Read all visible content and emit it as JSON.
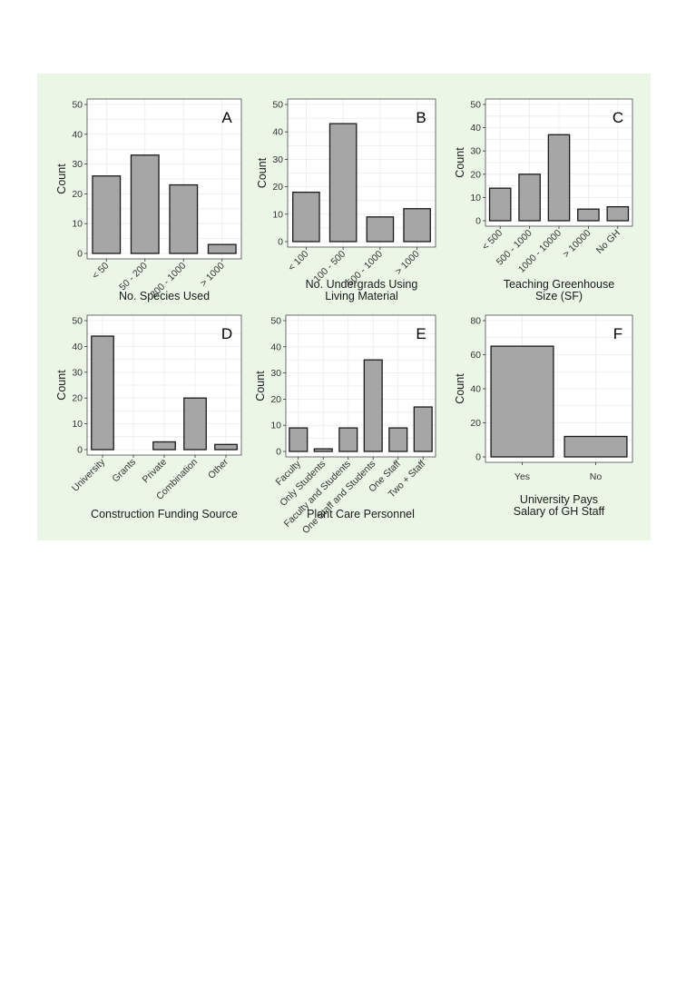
{
  "chart_data": [
    {
      "id": "A",
      "type": "bar",
      "panel_label": "A",
      "categories": [
        "< 50",
        "50 - 200",
        "200 - 1000",
        "> 1000"
      ],
      "values": [
        26,
        33,
        23,
        3
      ],
      "xlabel": [
        "No. Species Used"
      ],
      "ylabel": "Count",
      "ylim": [
        0,
        50
      ],
      "yticks": [
        0,
        10,
        20,
        30,
        40,
        50
      ],
      "grid": true
    },
    {
      "id": "B",
      "type": "bar",
      "panel_label": "B",
      "categories": [
        "< 100",
        "100 - 500",
        "500 - 1000",
        "> 1000"
      ],
      "values": [
        18,
        43,
        9,
        12
      ],
      "xlabel": [
        "No. Undergrads Using",
        "Living Material"
      ],
      "ylabel": "Count",
      "ylim": [
        0,
        50
      ],
      "yticks": [
        0,
        10,
        20,
        30,
        40,
        50
      ],
      "grid": true
    },
    {
      "id": "C",
      "type": "bar",
      "panel_label": "C",
      "categories": [
        "< 500",
        "500 - 1000",
        "1000 - 10000",
        "> 10000",
        "No GH"
      ],
      "values": [
        14,
        20,
        37,
        5,
        6
      ],
      "xlabel": [
        "Teaching Greenhouse",
        "Size (SF)"
      ],
      "ylabel": "Count",
      "ylim": [
        0,
        50
      ],
      "yticks": [
        0,
        10,
        20,
        30,
        40,
        50
      ],
      "grid": true
    },
    {
      "id": "D",
      "type": "bar",
      "panel_label": "D",
      "categories": [
        "University",
        "Grants",
        "Private",
        "Combination",
        "Other"
      ],
      "values": [
        44,
        0,
        3,
        20,
        2
      ],
      "xlabel": [
        "Construction Funding Source"
      ],
      "ylabel": "Count",
      "ylim": [
        0,
        50
      ],
      "yticks": [
        0,
        10,
        20,
        30,
        40,
        50
      ],
      "grid": true
    },
    {
      "id": "E",
      "type": "bar",
      "panel_label": "E",
      "categories": [
        "Faculty",
        "Only Students",
        "Faculty and Students",
        "One Staff and Students",
        "One Staff",
        "Two + Staff"
      ],
      "values": [
        9,
        1,
        9,
        35,
        9,
        17
      ],
      "xlabel": [
        "Plant Care Personnel"
      ],
      "ylabel": "Count",
      "ylim": [
        0,
        50
      ],
      "yticks": [
        0,
        10,
        20,
        30,
        40,
        50
      ],
      "grid": true
    },
    {
      "id": "F",
      "type": "bar",
      "panel_label": "F",
      "categories": [
        "Yes",
        "No"
      ],
      "values": [
        65,
        12
      ],
      "xlabel": [
        "University Pays",
        "Salary of GH Staff"
      ],
      "ylabel": "Count",
      "ylim": [
        0,
        80
      ],
      "yticks": [
        0,
        20,
        40,
        60,
        80
      ],
      "grid": true
    }
  ]
}
